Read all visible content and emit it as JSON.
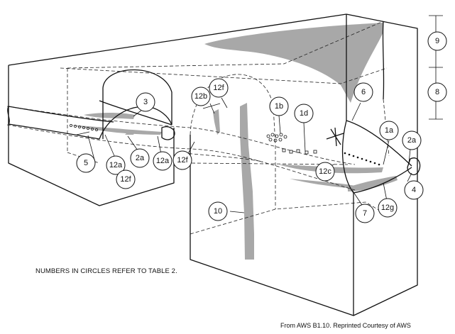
{
  "labels": {
    "l9": "9",
    "l8": "8",
    "l6": "6",
    "l3": "3",
    "l12f_top": "12f",
    "l12b": "12b",
    "l1b": "1b",
    "l1d": "1d",
    "l1a": "1a",
    "l2a_right": "2a",
    "l12c": "12c",
    "l4": "4",
    "l12g": "12g",
    "l7": "7",
    "l10": "10",
    "l5": "5",
    "l12a_left": "12a",
    "l2a_left": "2a",
    "l12a_mid": "12a",
    "l12f_mid": "12f",
    "l12f_bottom": "12f"
  },
  "notes": {
    "table_ref": "NUMBERS IN CIRCLES REFER TO TABLE 2.",
    "credit": "From AWS B1.10. Reprinted Courtesy of AWS"
  },
  "colors": {
    "line": "#111111",
    "discontinuity_fill": "#a8a8a8",
    "background": "#ffffff"
  }
}
